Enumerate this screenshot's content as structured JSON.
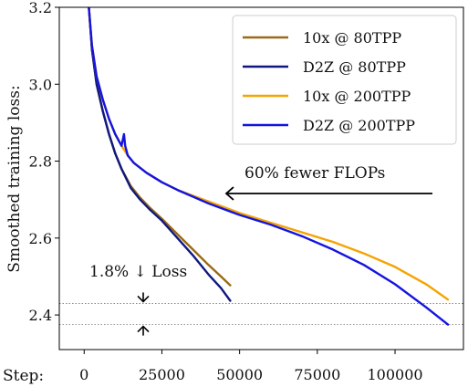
{
  "chart_data": {
    "type": "line",
    "xlabel": "Step:",
    "ylabel": "Smoothed training loss:",
    "xlim": [
      -8000,
      122000
    ],
    "ylim": [
      2.31,
      3.2
    ],
    "xticks": [
      0,
      25000,
      50000,
      75000,
      100000
    ],
    "xtick_labels": [
      "0",
      "25000",
      "50000",
      "75000",
      "100000"
    ],
    "yticks": [
      2.4,
      2.6,
      2.8,
      3.0,
      3.2
    ],
    "ytick_labels": [
      "2.4",
      "2.6",
      "2.8",
      "3.0",
      "3.2"
    ],
    "grid": false,
    "legend_position": "top-right",
    "series": [
      {
        "name": "10x @ 80TPP",
        "color": "#9a6a14",
        "x": [
          1500,
          2500,
          4000,
          6000,
          8000,
          10000,
          12000,
          15000,
          18000,
          21000,
          25000,
          30000,
          35000,
          40000,
          44000,
          47000
        ],
        "y": [
          3.2,
          3.09,
          3.0,
          2.93,
          2.87,
          2.82,
          2.78,
          2.735,
          2.705,
          2.68,
          2.65,
          2.61,
          2.57,
          2.53,
          2.5,
          2.477
        ]
      },
      {
        "name": "D2Z @ 80TPP",
        "color": "#101880",
        "x": [
          1500,
          2500,
          4000,
          6000,
          8000,
          10000,
          12000,
          15000,
          18000,
          21000,
          25000,
          30000,
          35000,
          40000,
          44000,
          47000
        ],
        "y": [
          3.2,
          3.09,
          3.0,
          2.93,
          2.87,
          2.82,
          2.78,
          2.73,
          2.7,
          2.675,
          2.645,
          2.6,
          2.555,
          2.505,
          2.47,
          2.437
        ]
      },
      {
        "name": "10x @ 200TPP",
        "color": "#f5a300",
        "x": [
          1500,
          2500,
          4000,
          6000,
          8000,
          10000,
          12000,
          14000,
          16000,
          20000,
          25000,
          30000,
          40000,
          50000,
          60000,
          70000,
          80000,
          90000,
          100000,
          110000,
          117000
        ],
        "y": [
          3.2,
          3.1,
          3.02,
          2.96,
          2.91,
          2.87,
          2.84,
          2.815,
          2.795,
          2.77,
          2.745,
          2.725,
          2.695,
          2.665,
          2.64,
          2.615,
          2.59,
          2.56,
          2.525,
          2.48,
          2.44
        ]
      },
      {
        "name": "D2Z @ 200TPP",
        "color": "#1414e0",
        "x": [
          1500,
          2500,
          4000,
          6000,
          8000,
          10000,
          12000,
          12800,
          13200,
          14000,
          16000,
          20000,
          25000,
          30000,
          40000,
          50000,
          60000,
          70000,
          80000,
          90000,
          100000,
          110000,
          117000
        ],
        "y": [
          3.2,
          3.1,
          3.02,
          2.96,
          2.91,
          2.87,
          2.84,
          2.87,
          2.84,
          2.815,
          2.795,
          2.77,
          2.745,
          2.725,
          2.69,
          2.66,
          2.635,
          2.605,
          2.57,
          2.53,
          2.48,
          2.42,
          2.375
        ]
      }
    ],
    "reference_lines_y": [
      2.43,
      2.375
    ],
    "annotations": {
      "flops": "60% fewer FLOPs",
      "loss": "1.8% ↓ Loss"
    }
  }
}
